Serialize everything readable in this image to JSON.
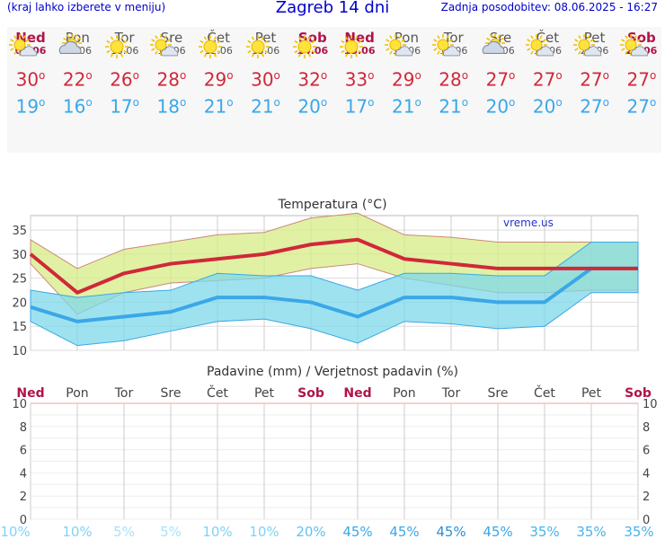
{
  "header": {
    "menu_hint": "(kraj lahko izberete v meniju)",
    "title": "Zagreb 14 dni",
    "updated": "Zadnja posodobitev: 08.06.2025 - 16:27"
  },
  "days": [
    {
      "name": "Ned",
      "date": "08.06",
      "weekend": true,
      "icon": "sun-cloud-icon",
      "max": "30",
      "min": "19"
    },
    {
      "name": "Pon",
      "date": "09.06",
      "weekend": false,
      "icon": "cloud-sun-icon",
      "max": "22",
      "min": "16"
    },
    {
      "name": "Tor",
      "date": "10.06",
      "weekend": false,
      "icon": "sun-icon",
      "max": "26",
      "min": "17"
    },
    {
      "name": "Sre",
      "date": "11.06",
      "weekend": false,
      "icon": "sun-cloud-icon",
      "max": "28",
      "min": "18"
    },
    {
      "name": "Čet",
      "date": "12.06",
      "weekend": false,
      "icon": "sun-icon",
      "max": "29",
      "min": "21"
    },
    {
      "name": "Pet",
      "date": "13.06",
      "weekend": false,
      "icon": "sun-icon",
      "max": "30",
      "min": "21"
    },
    {
      "name": "Sob",
      "date": "14.06",
      "weekend": true,
      "icon": "sun-icon",
      "max": "32",
      "min": "20"
    },
    {
      "name": "Ned",
      "date": "15.06",
      "weekend": true,
      "icon": "sun-icon",
      "max": "33",
      "min": "17"
    },
    {
      "name": "Pon",
      "date": "16.06",
      "weekend": false,
      "icon": "sun-cloud-icon",
      "max": "29",
      "min": "21"
    },
    {
      "name": "Tor",
      "date": "17.06",
      "weekend": false,
      "icon": "sun-cloud-icon",
      "max": "28",
      "min": "21"
    },
    {
      "name": "Sre",
      "date": "18.06",
      "weekend": false,
      "icon": "cloud-sun-icon",
      "max": "27",
      "min": "20"
    },
    {
      "name": "Čet",
      "date": "19.06",
      "weekend": false,
      "icon": "sun-cloud-icon",
      "max": "27",
      "min": "20"
    },
    {
      "name": "Pet",
      "date": "20.06",
      "weekend": false,
      "icon": "sun-cloud-icon",
      "max": "27",
      "min": "27"
    },
    {
      "name": "Sob",
      "date": "21.06",
      "weekend": true,
      "icon": "sun-cloud-icon",
      "max": "27",
      "min": "27"
    }
  ],
  "degree_symbol": "o",
  "colors": {
    "max": "#d0283a",
    "min": "#3aa7e8",
    "weekend": "#b0134a"
  },
  "chart_data": [
    {
      "type": "line",
      "title": "Temperatura (°C)",
      "watermark": "vreme.us",
      "ylim": [
        10,
        38
      ],
      "yticks": [
        "10",
        "15",
        "20",
        "25",
        "30",
        "35"
      ],
      "x": [
        1,
        2,
        3,
        4,
        5,
        6,
        7,
        8,
        9,
        10,
        11,
        12,
        13,
        14
      ],
      "series": [
        {
          "values": [
            30,
            22,
            26,
            28,
            29,
            30,
            32,
            33,
            29,
            28,
            27,
            27,
            27,
            27
          ],
          "upper": [
            33,
            27,
            31,
            32.5,
            34,
            34.5,
            37.5,
            38.5,
            34,
            33.5,
            32.5,
            32.5,
            32.5,
            32.5
          ],
          "lower": [
            28,
            17.5,
            22,
            24,
            24.5,
            25,
            27,
            28,
            25,
            23.5,
            22,
            22,
            22.5,
            22.5
          ]
        },
        {
          "values": [
            19,
            16,
            17,
            18,
            21,
            21,
            20,
            17,
            21,
            21,
            20,
            20,
            27,
            27
          ],
          "upper": [
            22.5,
            21,
            22,
            22.5,
            26,
            25.5,
            25.5,
            22.5,
            26,
            26,
            25.5,
            25.5,
            32.5,
            32.5
          ],
          "lower": [
            16,
            11,
            12,
            14,
            16,
            16.5,
            14.5,
            11.5,
            16,
            15.5,
            14.5,
            15,
            22,
            22
          ]
        }
      ]
    },
    {
      "type": "bar",
      "title": "Padavine (mm) / Verjetnost padavin (%)",
      "categories": [
        "Ned",
        "Pon",
        "Tor",
        "Sre",
        "Čet",
        "Pet",
        "Sob",
        "Ned",
        "Pon",
        "Tor",
        "Sre",
        "Čet",
        "Pet",
        "Sob"
      ],
      "weekend": [
        true,
        false,
        false,
        false,
        false,
        false,
        true,
        true,
        false,
        false,
        false,
        false,
        false,
        true
      ],
      "ylim": [
        0,
        10
      ],
      "yticks": [
        "0",
        "2",
        "4",
        "6",
        "8",
        "10"
      ],
      "values": [
        0,
        0,
        0,
        0,
        0,
        0,
        0,
        0,
        0,
        0,
        0,
        0,
        0,
        0
      ],
      "probability": [
        "10%",
        "10%",
        "5%",
        "5%",
        "10%",
        "10%",
        "20%",
        "45%",
        "45%",
        "45%",
        "45%",
        "35%",
        "35%",
        "35%"
      ],
      "probability_colors": [
        "#7fd3f5",
        "#7fd3f5",
        "#a6e3fa",
        "#a6e3fa",
        "#7fd3f5",
        "#7fd3f5",
        "#5fc3ef",
        "#3aa7e8",
        "#3aa7e8",
        "#2d8fd4",
        "#3aa7e8",
        "#4ab2ea",
        "#4ab2ea",
        "#4ab2ea"
      ]
    }
  ]
}
